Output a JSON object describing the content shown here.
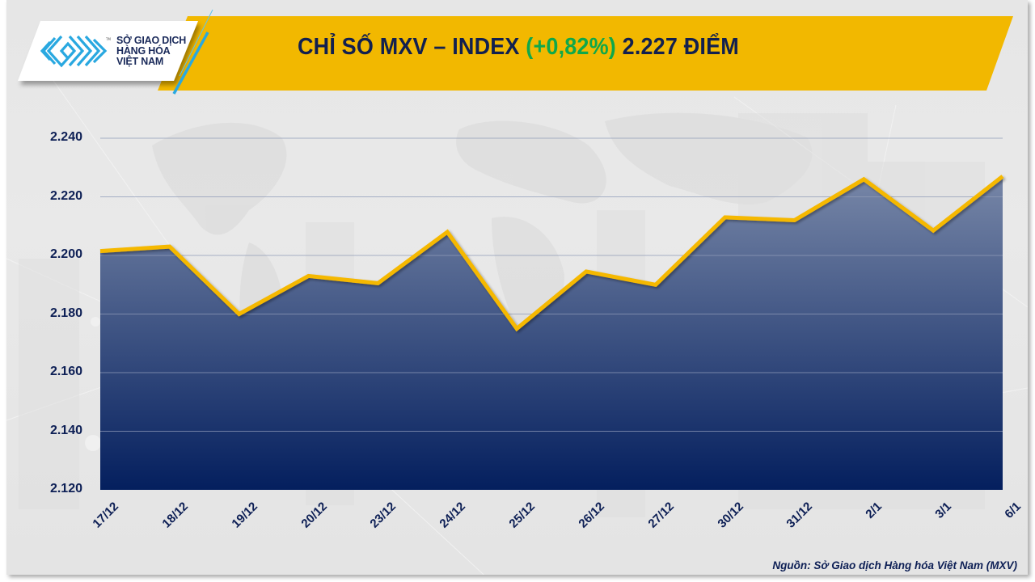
{
  "header": {
    "logo": {
      "icon": "mxv-logo-icon",
      "lines": [
        "SỞ GIAO DỊCH",
        "HÀNG HÓA",
        "VIỆT NAM"
      ],
      "tm": "TM",
      "color": "#29a8e0"
    },
    "title_prefix": "CHỈ SỐ MXV – INDEX ",
    "title_change": "(+0,82%)",
    "title_suffix": " 2.227 ĐIỂM",
    "banner_color": "#f2b800",
    "change_color": "#10a84a"
  },
  "footer": {
    "source": "Nguồn: Sở Giao dịch Hàng hóa Việt Nam (MXV)"
  },
  "chart_data": {
    "type": "area",
    "title": "CHỈ SỐ MXV – INDEX (+0,82%) 2.227 ĐIỂM",
    "xlabel": "",
    "ylabel": "",
    "categories": [
      "17/12",
      "18/12",
      "19/12",
      "20/12",
      "23/12",
      "24/12",
      "25/12",
      "26/12",
      "27/12",
      "30/12",
      "31/12",
      "2/1",
      "3/1",
      "6/1"
    ],
    "series": [
      {
        "name": "MXV-Index",
        "values": [
          2201.5,
          2203,
          2180,
          2193,
          2190.5,
          2208,
          2175,
          2194.5,
          2190,
          2213,
          2212,
          2226,
          2208.5,
          2227
        ],
        "line_color": "#f5b800",
        "fill_top": "#8593b0",
        "fill_bottom": "#041f5e"
      }
    ],
    "yticks": [
      "2.120",
      "2.140",
      "2.160",
      "2.180",
      "2.200",
      "2.220",
      "2.240"
    ],
    "ytick_values": [
      2120,
      2140,
      2160,
      2180,
      2200,
      2220,
      2240
    ],
    "ylim": [
      2120,
      2250
    ],
    "grid": true,
    "legend": "none"
  }
}
